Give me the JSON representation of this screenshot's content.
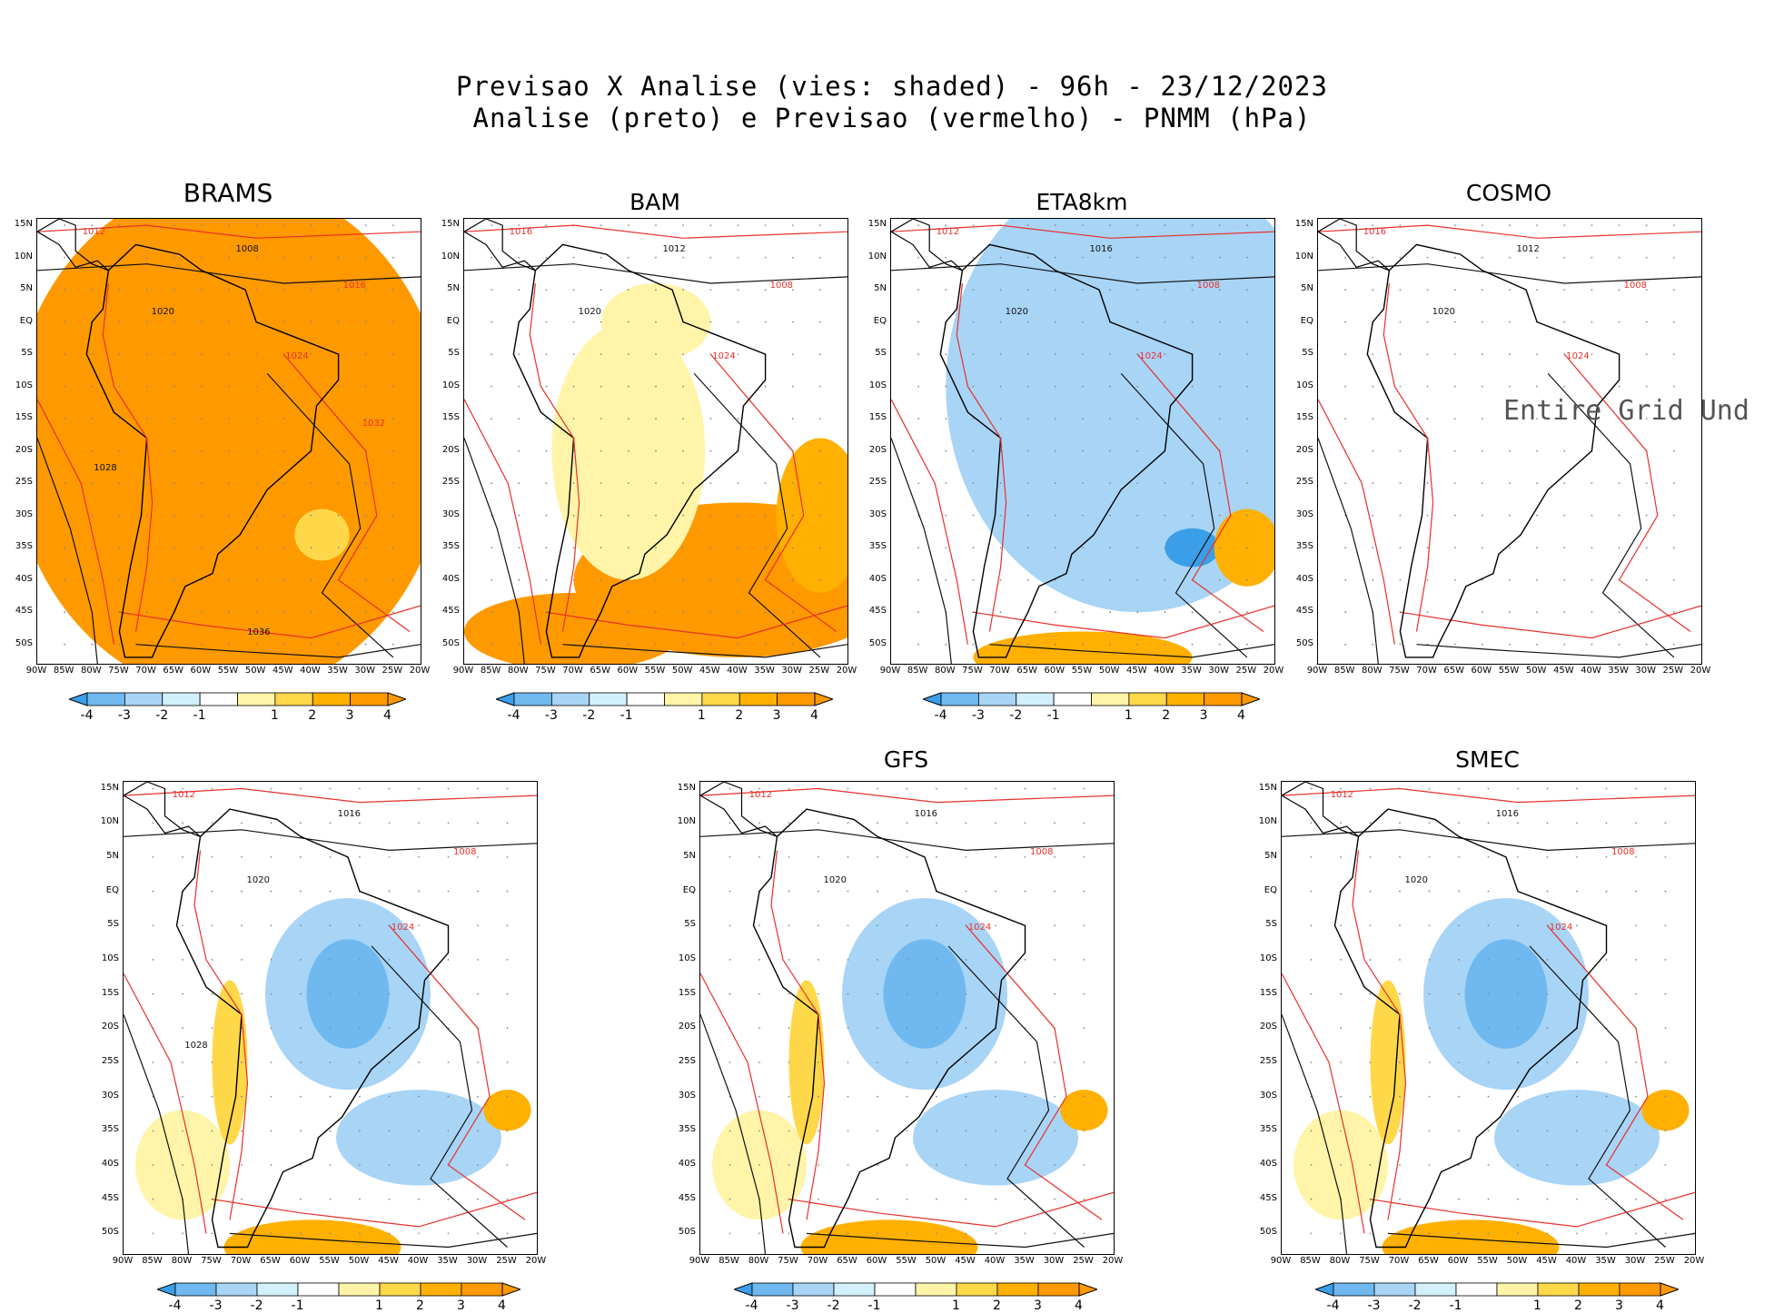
{
  "header": {
    "line1": "Previsao X Analise (vies: shaded) - 96h - 23/12/2023",
    "line2": "Analise (preto) e Previsao (vermelho) - PNMM (hPa)"
  },
  "colors": {
    "bias_scale": [
      "#3a9fe8",
      "#6fb9f0",
      "#a8d4f6",
      "#d2f0fb",
      "#ffffff",
      "#ffffff",
      "#fff4a8",
      "#ffd84a",
      "#ffb000",
      "#ff9900"
    ],
    "analysis_contour": "#111111",
    "forecast_contour": "#e8302b",
    "grid": "#8a8a8a"
  },
  "lat_labels": [
    "15N",
    "10N",
    "5N",
    "EQ",
    "5S",
    "10S",
    "15S",
    "20S",
    "25S",
    "30S",
    "35S",
    "40S",
    "45S",
    "50S"
  ],
  "lon_labels": [
    "90W",
    "85W",
    "80W",
    "75W",
    "70W",
    "65W",
    "60W",
    "55W",
    "50W",
    "45W",
    "40W",
    "35W",
    "30W",
    "25W",
    "20W"
  ],
  "colorbar_labels": [
    "-4",
    "-3",
    "-2",
    "-1",
    "1",
    "2",
    "3",
    "4"
  ],
  "panels": [
    {
      "id": "brams",
      "title": "BRAMS",
      "bias": "warm",
      "isobars": [
        "1012",
        "1008",
        "1016",
        "1020",
        "1024",
        "1028",
        "1032",
        "1036"
      ]
    },
    {
      "id": "bam",
      "title": "BAM",
      "bias": "mixed-warm",
      "isobars": [
        "1016",
        "1012",
        "1008",
        "1020",
        "1024"
      ]
    },
    {
      "id": "eta8km",
      "title": "ETA8km",
      "bias": "cool",
      "isobars": [
        "1012",
        "1016",
        "1008",
        "1020",
        "1024"
      ]
    },
    {
      "id": "cosmo",
      "title": "COSMO",
      "bias": "none",
      "undefined_text": "Entire Grid Und",
      "isobars": [
        "1016",
        "1012",
        "1008",
        "1020",
        "1024"
      ]
    },
    {
      "id": "ens",
      "title": "",
      "bias": "cool-mixed",
      "isobars": [
        "1012",
        "1016",
        "1008",
        "1020",
        "1024",
        "1028"
      ]
    },
    {
      "id": "gfs",
      "title": "GFS",
      "bias": "cool-mixed",
      "isobars": [
        "1012",
        "1016",
        "1008",
        "1020",
        "1024"
      ]
    },
    {
      "id": "smec",
      "title": "SMEC",
      "bias": "cool-mixed",
      "isobars": [
        "1012",
        "1016",
        "1008",
        "1020",
        "1024"
      ]
    }
  ]
}
